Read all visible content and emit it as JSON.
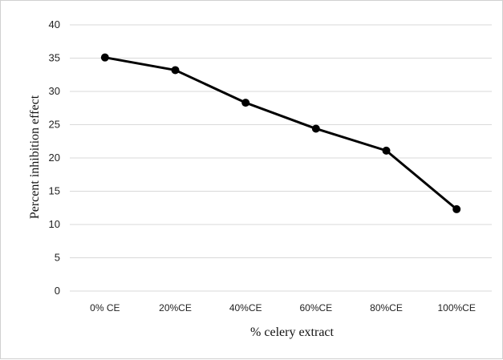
{
  "chart_data": {
    "type": "line",
    "title": "",
    "xlabel": "% celery extract",
    "ylabel": "Percent inhibition effect",
    "categories": [
      "0% CE",
      "20%CE",
      "40%CE",
      "60%CE",
      "80%CE",
      "100%CE"
    ],
    "series": [
      {
        "values": [
          35.1,
          33.2,
          28.3,
          24.4,
          21.1,
          12.3
        ]
      }
    ],
    "ylim": [
      0,
      40
    ],
    "yticks": [
      "0",
      "5",
      "10",
      "15",
      "20",
      "25",
      "30",
      "35",
      "40"
    ],
    "grid": true,
    "legend": "none",
    "colors": {
      "line": "#000000",
      "grid": "#d9d9d9",
      "frame": "#d0d0d0"
    }
  }
}
